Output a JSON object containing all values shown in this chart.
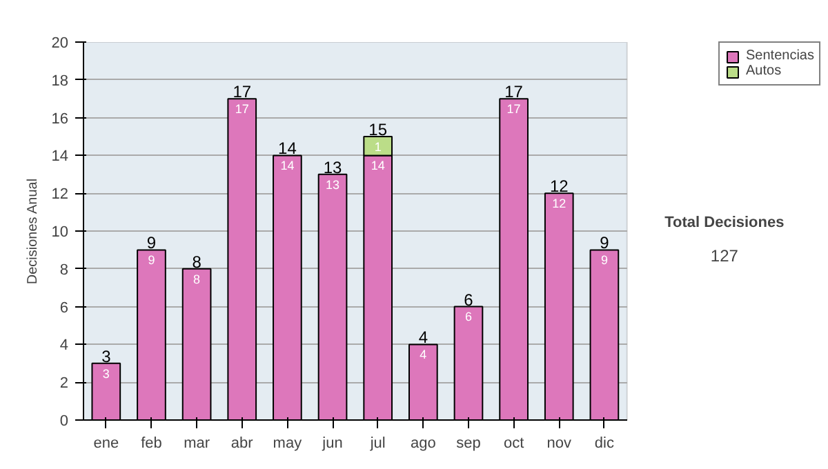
{
  "chart_data": {
    "type": "bar",
    "stacked": true,
    "ylabel": "Decisiones Anual",
    "categories": [
      "ene",
      "feb",
      "mar",
      "abr",
      "may",
      "jun",
      "jul",
      "ago",
      "sep",
      "oct",
      "nov",
      "dic"
    ],
    "series": [
      {
        "name": "Sentencias",
        "color": "#dd77bb",
        "values": [
          3,
          9,
          8,
          17,
          14,
          13,
          14,
          4,
          6,
          17,
          12,
          9
        ]
      },
      {
        "name": "Autos",
        "color": "#bbdd88",
        "values": [
          null,
          null,
          null,
          null,
          null,
          null,
          1,
          null,
          null,
          null,
          null,
          null
        ]
      }
    ],
    "totals": [
      "3",
      "9",
      "8",
      "17",
      "14",
      "13",
      "15",
      "4",
      "6",
      "17",
      "12",
      "9"
    ],
    "data_labels": true,
    "ylim": [
      0,
      20
    ],
    "yticks": [
      0,
      2,
      4,
      6,
      8,
      10,
      12,
      14,
      16,
      18,
      20
    ],
    "grid": "y",
    "legend": "right",
    "annotations": [
      "Total Decisiones",
      "127"
    ]
  }
}
